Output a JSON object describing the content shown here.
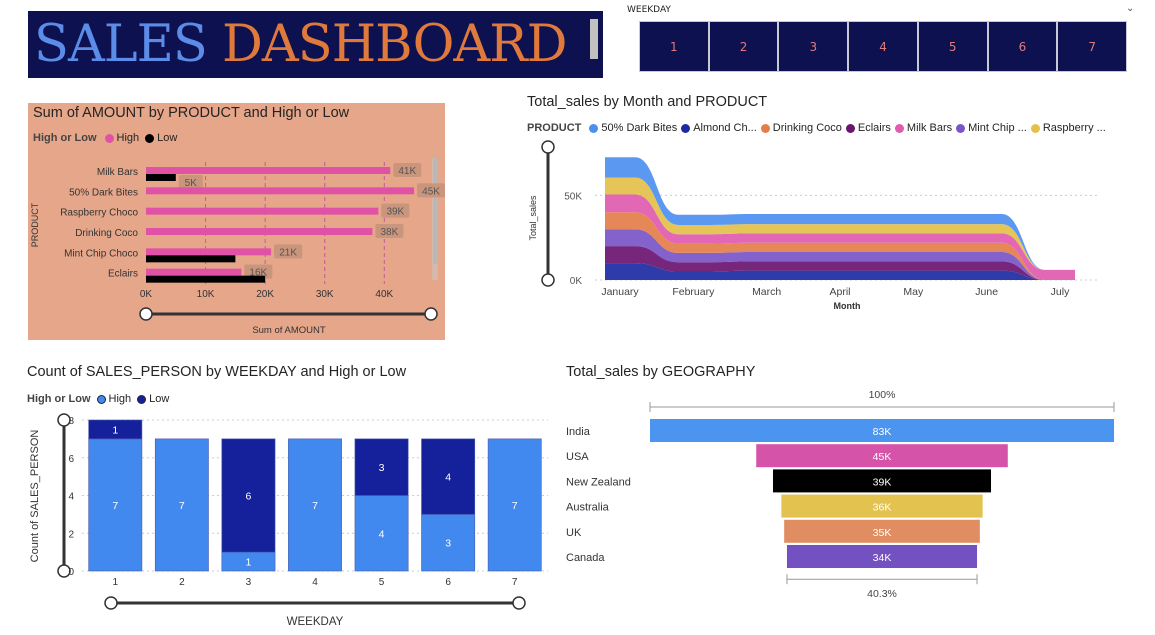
{
  "banner": {
    "title_part1": "SALES",
    "title_part2": "DASHBOARD",
    "color_part1": "#5a8ce8",
    "color_part2": "#e07a3c"
  },
  "slicer": {
    "title": "WEEKDAY",
    "options": [
      "1",
      "2",
      "3",
      "4",
      "5",
      "6",
      "7"
    ]
  },
  "chart_data": [
    {
      "id": "product_bar",
      "type": "bar",
      "orientation": "horizontal",
      "title": "Sum of AMOUNT by PRODUCT and High or Low",
      "legend_title": "High or Low",
      "xlabel": "Sum of AMOUNT",
      "ylabel": "PRODUCT",
      "categories": [
        "Milk Bars",
        "50% Dark Bites",
        "Raspberry Choco",
        "Drinking Coco",
        "Mint Chip Choco",
        "Eclairs"
      ],
      "series": [
        {
          "name": "High",
          "color": "#e052a6",
          "values": [
            41000,
            45000,
            39000,
            38000,
            21000,
            16000
          ],
          "labels": [
            "41K",
            "45K",
            "39K",
            "38K",
            "21K",
            "16K"
          ]
        },
        {
          "name": "Low",
          "color": "#000000",
          "values": [
            5000,
            null,
            null,
            null,
            15000,
            20000
          ],
          "labels": [
            "5K",
            "",
            "",
            "",
            "",
            ""
          ]
        }
      ],
      "xticks": [
        "0K",
        "10K",
        "20K",
        "30K",
        "40K"
      ],
      "xlim": [
        0,
        47000
      ],
      "gridlines": true
    },
    {
      "id": "month_area",
      "type": "area",
      "title": "Total_sales by Month and PRODUCT",
      "legend_title": "PRODUCT",
      "xlabel": "Month",
      "ylabel": "Total_sales",
      "x": [
        "January",
        "February",
        "March",
        "April",
        "May",
        "June",
        "July"
      ],
      "yticks": [
        "0K",
        "50K"
      ],
      "ylim": [
        0,
        75000
      ],
      "series": [
        {
          "name": "50% Dark Bites",
          "color": "#4d8ff0",
          "values": [
            12000,
            6000,
            6000,
            6000,
            6000,
            6000,
            0
          ]
        },
        {
          "name": "Almond Ch...",
          "color": "#1c2aa3",
          "values": [
            10000,
            5000,
            5500,
            5500,
            5500,
            5500,
            0
          ]
        },
        {
          "name": "Drinking Coco",
          "color": "#e47d4a",
          "values": [
            10000,
            5500,
            5500,
            5500,
            5500,
            5500,
            0
          ]
        },
        {
          "name": "Eclairs",
          "color": "#6a1470",
          "values": [
            10000,
            5500,
            5500,
            5500,
            5500,
            5500,
            0
          ]
        },
        {
          "name": "Milk Bars",
          "color": "#e05aae",
          "values": [
            10500,
            5500,
            5500,
            5500,
            5500,
            5500,
            6000
          ]
        },
        {
          "name": "Mint Chip ...",
          "color": "#7a55c8",
          "values": [
            10000,
            5500,
            5500,
            5500,
            5500,
            5500,
            0
          ]
        },
        {
          "name": "Raspberry ...",
          "color": "#e3c04a",
          "values": [
            10000,
            5500,
            5500,
            5500,
            5500,
            5500,
            0
          ]
        }
      ],
      "gridlines": true
    },
    {
      "id": "weekday_bar",
      "type": "bar",
      "orientation": "vertical",
      "stacked": true,
      "title": "Count of SALES_PERSON by WEEKDAY and High or Low",
      "legend_title": "High or Low",
      "xlabel": "WEEKDAY",
      "ylabel": "Count of SALES_PERSON",
      "categories": [
        "1",
        "2",
        "3",
        "4",
        "5",
        "6",
        "7"
      ],
      "series": [
        {
          "name": "High",
          "color": "#4188ef",
          "values": [
            7,
            7,
            1,
            7,
            4,
            3,
            7
          ]
        },
        {
          "name": "Low",
          "color": "#15219b",
          "values": [
            1,
            0,
            6,
            0,
            3,
            4,
            0
          ]
        }
      ],
      "yticks": [
        "0",
        "2",
        "4",
        "6",
        "8"
      ],
      "ylim": [
        0,
        8
      ],
      "gridlines": true
    },
    {
      "id": "geo_funnel",
      "type": "funnel",
      "title": "Total_sales by GEOGRAPHY",
      "categories": [
        "India",
        "USA",
        "New Zealand",
        "Australia",
        "UK",
        "Canada"
      ],
      "values": [
        83000,
        45000,
        39000,
        36000,
        35000,
        34000
      ],
      "labels": [
        "83K",
        "45K",
        "39K",
        "36K",
        "35K",
        "34K"
      ],
      "colors": [
        "#4b94ef",
        "#d554aa",
        "#000000",
        "#e4c24f",
        "#e08d62",
        "#7451c1"
      ],
      "top_label": "100%",
      "bottom_label": "40.3%"
    }
  ]
}
